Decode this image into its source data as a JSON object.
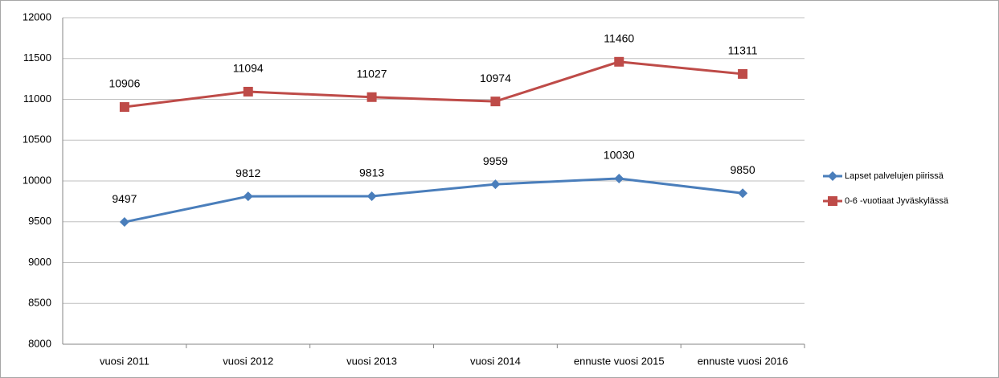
{
  "chart_data": {
    "type": "line",
    "categories": [
      "vuosi 2011",
      "vuosi 2012",
      "vuosi 2013",
      "vuosi 2014",
      "ennuste vuosi 2015",
      "ennuste vuosi 2016"
    ],
    "series": [
      {
        "name": "Lapset palvelujen piirissä",
        "color": "#4a7ebb",
        "marker": "diamond",
        "values": [
          9497,
          9812,
          9813,
          9959,
          10030,
          9850
        ]
      },
      {
        "name": "0-6 -vuotiaat Jyväskylässä",
        "color": "#be4b48",
        "marker": "square",
        "values": [
          10906,
          11094,
          11027,
          10974,
          11460,
          11311
        ]
      }
    ],
    "ylim": [
      8000,
      12000
    ],
    "yticks": [
      8000,
      8500,
      9000,
      9500,
      10000,
      10500,
      11000,
      11500,
      12000
    ],
    "grid": true,
    "legend": "right"
  }
}
